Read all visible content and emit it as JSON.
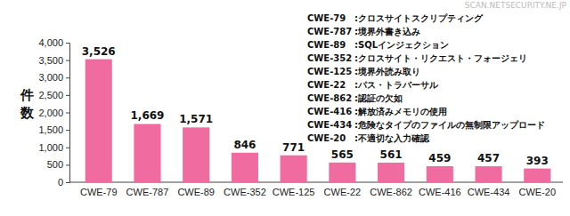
{
  "chart_data": {
    "type": "bar",
    "y_label": "件数",
    "watermark": "SCAN.NETSECURITY.NE.JP",
    "categories": [
      "CWE-79",
      "CWE-787",
      "CWE-89",
      "CWE-352",
      "CWE-125",
      "CWE-22",
      "CWE-862",
      "CWE-416",
      "CWE-434",
      "CWE-20"
    ],
    "values": [
      3526,
      1669,
      1571,
      846,
      771,
      565,
      561,
      459,
      457,
      393
    ],
    "value_labels": [
      "3,526",
      "1,669",
      "1,571",
      "846",
      "771",
      "565",
      "561",
      "459",
      "457",
      "393"
    ],
    "color": "#f06ba0",
    "ylim": [
      0,
      4000
    ],
    "yticks": [
      0,
      500,
      {
        "value": 1000,
        "label": "1,000"
      },
      {
        "value": 1500,
        "label": "1,500"
      },
      {
        "value": 2000,
        "label": "2,000"
      },
      {
        "value": 2500,
        "label": "2,500"
      },
      {
        "value": 3000,
        "label": "3,000"
      },
      {
        "value": 3500,
        "label": "3,500"
      },
      {
        "value": 4000,
        "label": "4,000"
      }
    ],
    "grid": false,
    "data_labels": true,
    "annotations": [
      {
        "code": "CWE-79",
        "text": ":クロスサイトスクリプティング"
      },
      {
        "code": "CWE-787",
        "text": ":境界外書き込み"
      },
      {
        "code": "CWE-89",
        "text": ":SQLインジェクション"
      },
      {
        "code": "CWE-352",
        "text": ":クロスサイト・リクエスト・フォージェリ"
      },
      {
        "code": "CWE-125",
        "text": ":境界外読み取り"
      },
      {
        "code": "CWE-22",
        "text": ":パス・トラバーサル"
      },
      {
        "code": "CWE-862",
        "text": ":認証の欠如"
      },
      {
        "code": "CWE-416",
        "text": ":解放済みメモリの使用"
      },
      {
        "code": "CWE-434",
        "text": ":危険なタイプのファイルの無制限アップロード"
      },
      {
        "code": "CWE-20",
        "text": ":不適切な入力確認"
      }
    ]
  }
}
